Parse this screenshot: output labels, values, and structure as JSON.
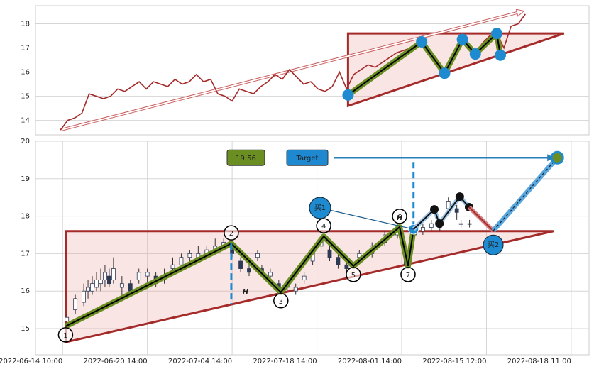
{
  "chart_data": [
    {
      "type": "line",
      "series": [
        {
          "color": "#a52a2a",
          "values": [
            13.6,
            14.0,
            14.1,
            14.3,
            15.1,
            15.0,
            14.9,
            15.0,
            15.3,
            15.2,
            15.4,
            15.6,
            15.3,
            15.6,
            15.5,
            15.4,
            15.7,
            15.5,
            15.6,
            15.9,
            15.6,
            15.7,
            15.1,
            15.0,
            14.8,
            15.3,
            15.2,
            15.1,
            15.4,
            15.6,
            15.9,
            15.7,
            16.1,
            15.8,
            15.5,
            15.6,
            15.3,
            15.2,
            15.4,
            16.0,
            15.3,
            15.9,
            16.1,
            16.3,
            16.2,
            16.4,
            16.6,
            16.8,
            16.9,
            17.0,
            17.2,
            17.0,
            16.7,
            16.2,
            16.0,
            16.6,
            17.3,
            17.0,
            16.8,
            17.2,
            17.5,
            17.6,
            17.0,
            17.9,
            18.0,
            18.4
          ]
        }
      ],
      "xlim": [
        -3.5,
        73.9
      ],
      "ylim": [
        13.4,
        18.75
      ],
      "yticks": [
        14,
        15,
        16,
        17,
        18
      ],
      "grid": true,
      "pattern": {
        "x": [
          40.2,
          50.5,
          53.7,
          56.2,
          58.0,
          61.0,
          61.5
        ],
        "values": [
          15.05,
          17.25,
          15.95,
          17.35,
          16.75,
          17.6,
          16.7
        ]
      },
      "triangle": {
        "x": [
          40.2,
          70.4,
          40.2
        ],
        "values": [
          17.6,
          17.6,
          14.6
        ]
      },
      "trend_arrow": {
        "x": [
          0,
          64.8
        ],
        "values": [
          13.6,
          18.53
        ]
      }
    },
    {
      "type": "candlestick",
      "x": [
        1,
        3,
        5,
        6,
        7,
        8,
        9,
        10,
        11,
        12,
        14,
        16,
        18,
        20,
        22,
        24,
        26,
        28,
        30,
        32,
        34,
        36,
        38,
        40,
        42,
        44,
        46,
        47,
        49,
        51,
        53,
        55,
        57,
        59,
        61,
        63,
        65,
        67,
        70,
        73,
        76,
        79,
        81,
        83,
        85,
        87,
        89,
        91,
        93,
        94,
        96
      ],
      "open": [
        15.2,
        15.5,
        15.7,
        16.0,
        16.0,
        16.1,
        16.2,
        16.3,
        16.4,
        16.3,
        16.1,
        16.2,
        16.3,
        16.4,
        16.4,
        16.3,
        16.6,
        16.7,
        16.9,
        16.9,
        17.0,
        17.1,
        17.2,
        17.2,
        16.8,
        16.6,
        16.9,
        16.6,
        16.4,
        16.2,
        16.1,
        16.0,
        16.3,
        16.8,
        17.2,
        17.1,
        16.9,
        16.7,
        16.9,
        17.0,
        17.3,
        17.5,
        16.9,
        17.5,
        17.6,
        17.7,
        17.7,
        18.2,
        18.2,
        17.8,
        17.8
      ],
      "close": [
        15.3,
        15.8,
        16.0,
        16.1,
        16.2,
        16.3,
        16.3,
        16.5,
        16.2,
        16.6,
        16.2,
        16.0,
        16.5,
        16.5,
        16.2,
        16.4,
        16.7,
        16.9,
        17.0,
        17.0,
        17.1,
        17.2,
        17.3,
        17.0,
        16.6,
        16.5,
        17.0,
        16.5,
        16.5,
        16.0,
        16.2,
        16.1,
        16.4,
        17.0,
        17.4,
        16.9,
        16.7,
        16.6,
        17.0,
        17.2,
        17.5,
        17.7,
        16.7,
        17.6,
        17.7,
        17.8,
        17.8,
        18.4,
        18.1,
        17.8,
        17.8
      ],
      "high": [
        15.4,
        15.9,
        16.2,
        16.3,
        16.4,
        16.5,
        16.6,
        16.7,
        16.6,
        16.9,
        16.4,
        16.3,
        16.6,
        16.6,
        16.5,
        16.6,
        16.9,
        17.0,
        17.1,
        17.2,
        17.2,
        17.4,
        17.4,
        17.3,
        16.9,
        16.7,
        17.1,
        16.7,
        16.6,
        16.3,
        16.3,
        16.2,
        16.5,
        17.1,
        17.5,
        17.2,
        17.0,
        16.8,
        17.1,
        17.3,
        17.6,
        17.8,
        17.0,
        17.7,
        17.8,
        17.9,
        17.9,
        18.5,
        18.3,
        17.9,
        17.9
      ],
      "low": [
        15.1,
        15.4,
        15.6,
        15.8,
        15.9,
        16.0,
        16.0,
        16.1,
        16.1,
        16.2,
        15.8,
        15.9,
        16.2,
        16.2,
        16.1,
        16.2,
        16.5,
        16.6,
        16.8,
        16.8,
        16.9,
        17.0,
        17.1,
        16.9,
        16.5,
        16.4,
        16.8,
        16.4,
        16.3,
        15.9,
        16.0,
        15.9,
        16.2,
        16.7,
        17.1,
        16.8,
        16.6,
        16.5,
        16.8,
        16.9,
        17.2,
        17.4,
        16.6,
        17.4,
        17.5,
        17.6,
        17.6,
        18.1,
        17.9,
        17.7,
        17.7
      ],
      "xlim": [
        -6.4,
        124.2
      ],
      "ylim": [
        14.3,
        20
      ],
      "xticks": [
        {
          "value": 0,
          "label": "2022-06-14 10:00"
        },
        {
          "value": 20,
          "label": "2022-06-20 14:00"
        },
        {
          "value": 40,
          "label": "2022-07-04 14:00"
        },
        {
          "value": 60,
          "label": "2022-07-18 14:00"
        },
        {
          "value": 80,
          "label": "2022-08-01 14:00"
        },
        {
          "value": 100,
          "label": "2022-08-15 12:00"
        },
        {
          "value": 120,
          "label": "2022-08-18 11:00"
        }
      ],
      "yticks": [
        15,
        16,
        17,
        18,
        19,
        20
      ],
      "grid": true,
      "pattern": {
        "labels": [
          "1",
          "2",
          "3",
          "4",
          "5",
          "6",
          "7",
          null
        ],
        "x": [
          0.7,
          39.8,
          51.5,
          61.6,
          68.6,
          79.5,
          81.5,
          82.8
        ],
        "values": [
          15.06,
          17.27,
          15.97,
          17.46,
          16.67,
          17.71,
          16.67,
          17.65
        ]
      },
      "triangle": {
        "x": [
          0.84,
          115.8,
          0.84
        ],
        "values": [
          17.6,
          17.6,
          14.64
        ]
      },
      "height_label": "H",
      "projection": {
        "x": [
          82.8,
          87.7,
          88.9,
          93.7,
          95.9
        ],
        "values": [
          17.65,
          18.18,
          17.8,
          18.52,
          18.24
        ]
      },
      "buy_points": [
        {
          "label": "买1",
          "x": 82.8,
          "value": 17.65
        },
        {
          "label": "买2",
          "x": 101.6,
          "value": 17.61
        }
      ],
      "target": {
        "label": "Target",
        "x": 116.7,
        "value": 19.56
      }
    }
  ]
}
